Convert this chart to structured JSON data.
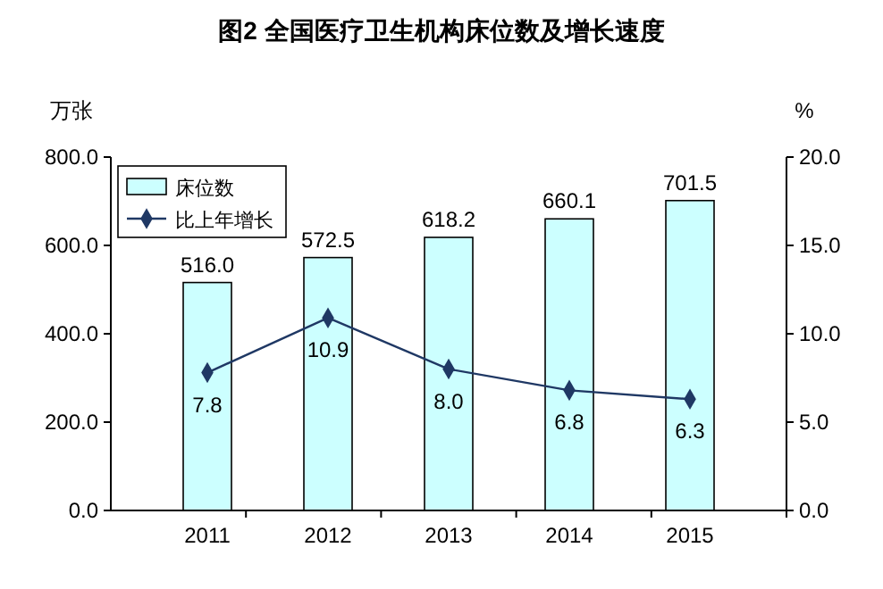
{
  "chart_data": {
    "type": "bar",
    "title": "图2  全国医疗卫生机构床位数及增长速度",
    "ylabel": "万张",
    "y2label": "%",
    "categories": [
      "2011",
      "2012",
      "2013",
      "2014",
      "2015"
    ],
    "series": [
      {
        "name": "床位数",
        "color": "#ccffff",
        "values": [
          516.0,
          572.5,
          618.2,
          660.1,
          701.5
        ],
        "value_labels": [
          "516.0",
          "572.5",
          "618.2",
          "660.1",
          "701.5"
        ]
      },
      {
        "name": "比上年增长",
        "type": "line",
        "axis": "y2",
        "color": "#1f3864",
        "marker": "diamond",
        "values": [
          7.8,
          10.9,
          8.0,
          6.8,
          6.3
        ],
        "value_labels": [
          "7.8",
          "10.9",
          "8.0",
          "6.8",
          "6.3"
        ]
      }
    ],
    "ylim": [
      0,
      800
    ],
    "yticks": [
      {
        "value": 0,
        "label": "0.0"
      },
      {
        "value": 200,
        "label": "200.0"
      },
      {
        "value": 400,
        "label": "400.0"
      },
      {
        "value": 600,
        "label": "600.0"
      },
      {
        "value": 800,
        "label": "800.0"
      }
    ],
    "y2lim": [
      0,
      20
    ],
    "y2ticks": [
      {
        "value": 0,
        "label": "0.0"
      },
      {
        "value": 5,
        "label": "5.0"
      },
      {
        "value": 10,
        "label": "10.0"
      },
      {
        "value": 15,
        "label": "15.0"
      },
      {
        "value": 20,
        "label": "20.0"
      }
    ],
    "legend": "top left",
    "grid": false
  }
}
